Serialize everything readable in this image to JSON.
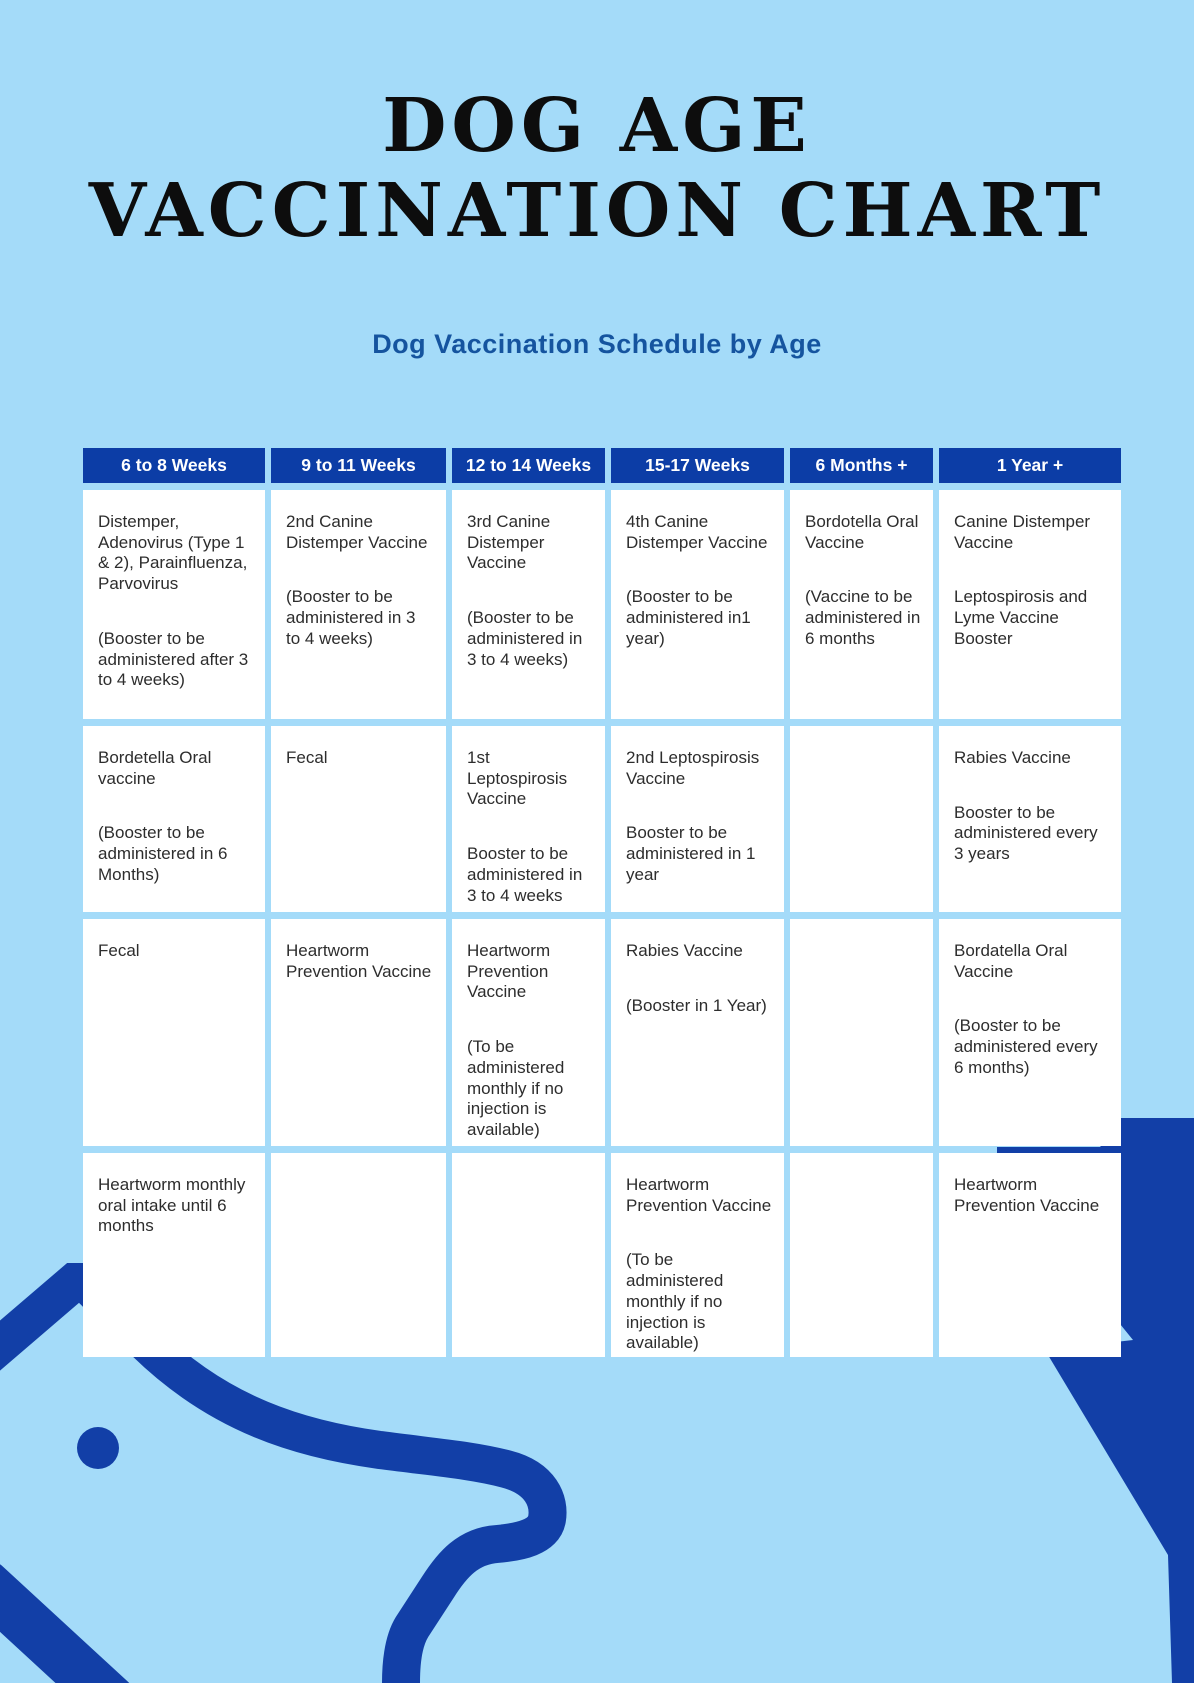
{
  "page": {
    "title_line1": "DOG AGE",
    "title_line2": "VACCINATION CHART",
    "subtitle": "Dog Vaccination Schedule by Age"
  },
  "colors": {
    "background": "#a4dbf9",
    "header_blue": "#0c3da6",
    "accent_navy": "#123fa7",
    "cell_white": "#ffffff",
    "subtitle_blue": "#15549f",
    "body_text": "#2d2d2d",
    "title_black": "#0d0d0d"
  },
  "icons": {
    "dog_head": "dog-head-outline-icon",
    "corner_arrow": "down-arrow-flash-shape"
  },
  "table": {
    "columns": [
      "6 to 8 Weeks",
      "9 to 11 Weeks",
      "12 to 14 Weeks",
      "15-17 Weeks",
      "6 Months +",
      "1 Year +"
    ],
    "rows": [
      [
        [
          "Distemper, Adenovirus (Type 1 & 2), Parainfluenza, Parvovirus",
          "(Booster to be administered after 3 to 4 weeks)"
        ],
        [
          "2nd Canine Distemper Vaccine",
          "(Booster to be administered in 3 to 4 weeks)"
        ],
        [
          "3rd Canine Distemper Vaccine",
          "(Booster to be administered in 3 to 4 weeks)"
        ],
        [
          "4th Canine Distemper Vaccine",
          "(Booster to be administered in1 year)"
        ],
        [
          "Bordotella Oral Vaccine",
          "(Vaccine to be administered in 6 months"
        ],
        [
          "Canine Distemper Vaccine",
          "Leptospirosis and Lyme Vaccine Booster"
        ]
      ],
      [
        [
          "Bordetella Oral vaccine",
          "(Booster to be administered in 6 Months)"
        ],
        [
          "Fecal"
        ],
        [
          "1st Leptospirosis Vaccine",
          "Booster to be administered in 3 to 4 weeks"
        ],
        [
          "2nd Leptospirosis Vaccine",
          "Booster to be administered in 1 year"
        ],
        [],
        [
          "Rabies Vaccine",
          "Booster to be administered every 3 years"
        ]
      ],
      [
        [
          "Fecal"
        ],
        [
          "Heartworm Prevention Vaccine"
        ],
        [
          "Heartworm Prevention Vaccine",
          "(To be administered monthly if no injection is available)"
        ],
        [
          "Rabies Vaccine",
          "(Booster in 1 Year)"
        ],
        [],
        [
          "Bordatella Oral Vaccine",
          "(Booster to be administered every 6 months)"
        ]
      ],
      [
        [
          "Heartworm monthly oral intake until 6 months"
        ],
        [],
        [],
        [
          "Heartworm Prevention Vaccine",
          "(To be administered monthly if no injection is available)"
        ],
        [],
        [
          "Heartworm Prevention Vaccine"
        ]
      ]
    ]
  }
}
